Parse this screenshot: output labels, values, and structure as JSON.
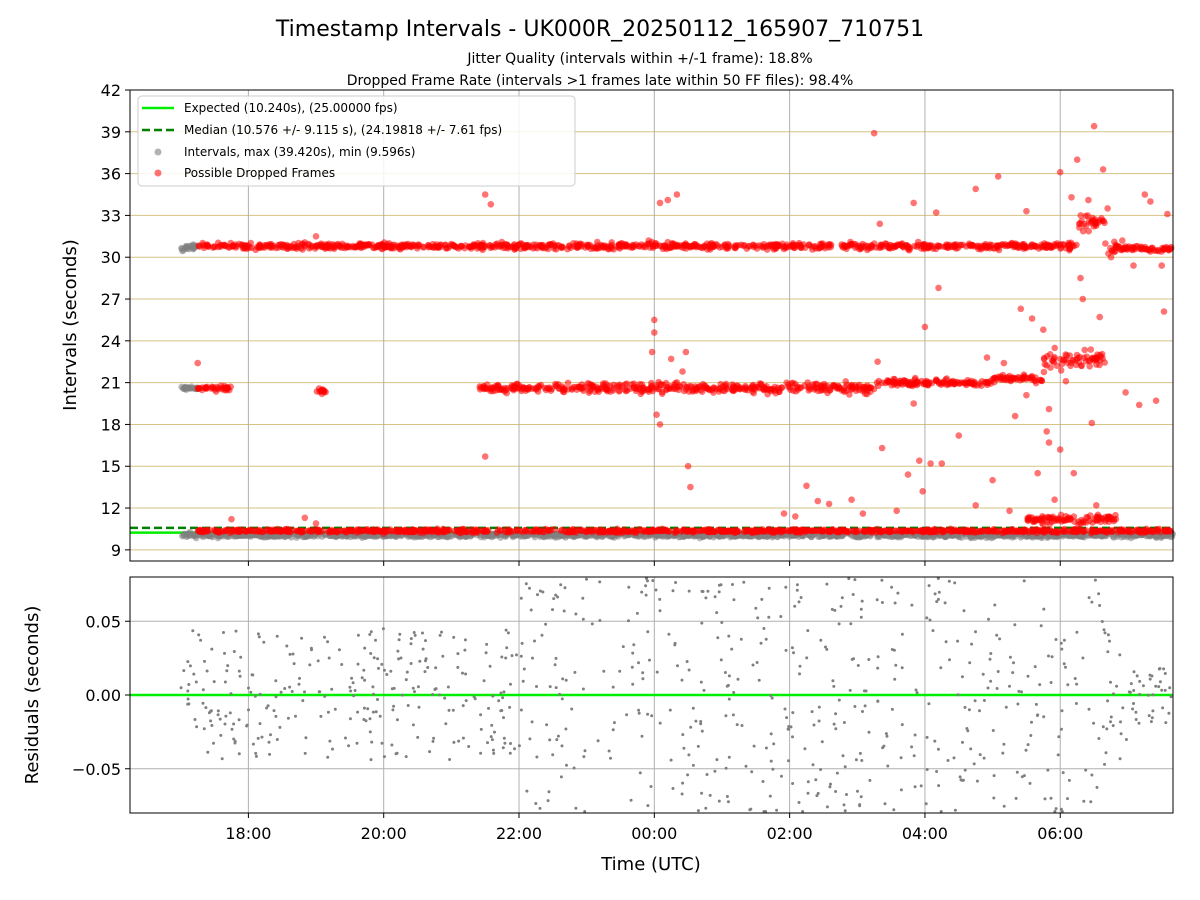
{
  "chart_data": [
    {
      "type": "scatter",
      "title": "Timestamp Intervals - UK000R_20250112_165907_710751",
      "subtitle_1": "Jitter Quality (intervals within +/-1 frame): 18.8%",
      "subtitle_2": "Dropped Frame Rate (intervals >1 frames late within 50 FF files): 98.4%",
      "ylabel": "Intervals (seconds)",
      "ylim": [
        8.2,
        42
      ],
      "yticks": [
        "9",
        "12",
        "15",
        "18",
        "21",
        "24",
        "27",
        "30",
        "33",
        "36",
        "39",
        "42"
      ],
      "xlim": [
        "16:15",
        "07:40"
      ],
      "grid": true,
      "legend_position": "upper-left",
      "expected_line": {
        "name": "Expected (10.240s), (25.00000 fps)",
        "y": 10.24,
        "color": "#00ee00"
      },
      "median_line": {
        "name": "Median (10.576 +/- 9.115 s), (24.19818 +/- 7.61 fps)",
        "y": 10.576,
        "color": "#008000"
      },
      "series": [
        {
          "name": "Intervals, max (39.420s), min (9.596s)",
          "color": "#808080",
          "bands": [
            {
              "from": "17:00",
              "to": "07:40",
              "center": 10.05,
              "spread": 0.25
            },
            {
              "from": "17:00",
              "to": "17:15",
              "center": 30.7,
              "spread": 0.4
            },
            {
              "from": "17:00",
              "to": "17:15",
              "center": 20.6,
              "spread": 0.2
            }
          ]
        },
        {
          "name": "Possible Dropped Frames",
          "color": "#ff0000",
          "bands": [
            {
              "from": "17:15",
              "to": "06:15",
              "center": 30.8,
              "spread": 0.35
            },
            {
              "from": "06:15",
              "to": "06:40",
              "center": 32.5,
              "spread": 1.0
            },
            {
              "from": "06:40",
              "to": "06:55",
              "center": 30.6,
              "spread": 0.6
            },
            {
              "from": "06:55",
              "to": "07:40",
              "center": 30.6,
              "spread": 0.3
            },
            {
              "from": "17:15",
              "to": "17:45",
              "center": 20.6,
              "spread": 0.3
            },
            {
              "from": "19:00",
              "to": "19:10",
              "center": 20.4,
              "spread": 0.3
            },
            {
              "from": "21:25",
              "to": "22:30",
              "center": 20.6,
              "spread": 0.4
            },
            {
              "from": "22:30",
              "to": "03:15",
              "center": 20.6,
              "spread": 0.6
            },
            {
              "from": "03:15",
              "to": "05:00",
              "center": 21.0,
              "spread": 0.4
            },
            {
              "from": "05:00",
              "to": "05:45",
              "center": 21.3,
              "spread": 0.4
            },
            {
              "from": "05:45",
              "to": "06:40",
              "center": 22.6,
              "spread": 1.0
            },
            {
              "from": "17:15",
              "to": "07:40",
              "center": 10.35,
              "spread": 0.2
            },
            {
              "from": "05:30",
              "to": "06:50",
              "center": 11.2,
              "spread": 0.5
            }
          ],
          "outliers": [
            [
              "17:15",
              22.4
            ],
            [
              "17:45",
              11.2
            ],
            [
              "18:50",
              11.3
            ],
            [
              "19:00",
              10.9
            ],
            [
              "19:00",
              31.5
            ],
            [
              "21:30",
              34.5
            ],
            [
              "21:35",
              33.8
            ],
            [
              "21:30",
              15.7
            ],
            [
              "23:55",
              31.2
            ],
            [
              "23:58",
              23.2
            ],
            [
              "00:00",
              24.6
            ],
            [
              "00:00",
              25.5
            ],
            [
              "00:02",
              18.7
            ],
            [
              "00:05",
              18.0
            ],
            [
              "00:05",
              33.9
            ],
            [
              "00:12",
              34.1
            ],
            [
              "00:15",
              22.7
            ],
            [
              "00:20",
              34.5
            ],
            [
              "00:25",
              21.8
            ],
            [
              "00:28",
              23.2
            ],
            [
              "00:30",
              15.0
            ],
            [
              "00:32",
              13.5
            ],
            [
              "01:55",
              11.6
            ],
            [
              "02:05",
              11.4
            ],
            [
              "02:15",
              13.6
            ],
            [
              "02:25",
              12.5
            ],
            [
              "02:35",
              12.3
            ],
            [
              "02:55",
              12.6
            ],
            [
              "03:05",
              11.6
            ],
            [
              "03:15",
              38.9
            ],
            [
              "03:18",
              22.5
            ],
            [
              "03:20",
              32.4
            ],
            [
              "03:22",
              16.3
            ],
            [
              "03:35",
              11.8
            ],
            [
              "03:45",
              14.4
            ],
            [
              "03:50",
              19.5
            ],
            [
              "03:50",
              33.9
            ],
            [
              "03:55",
              15.4
            ],
            [
              "03:58",
              13.2
            ],
            [
              "04:00",
              25.0
            ],
            [
              "04:05",
              15.2
            ],
            [
              "04:10",
              33.2
            ],
            [
              "04:12",
              27.8
            ],
            [
              "04:15",
              15.2
            ],
            [
              "04:30",
              17.2
            ],
            [
              "04:45",
              34.9
            ],
            [
              "04:45",
              12.2
            ],
            [
              "04:55",
              22.8
            ],
            [
              "05:00",
              14.0
            ],
            [
              "05:05",
              35.8
            ],
            [
              "05:10",
              22.4
            ],
            [
              "05:15",
              11.8
            ],
            [
              "05:20",
              18.6
            ],
            [
              "05:25",
              26.3
            ],
            [
              "05:30",
              33.3
            ],
            [
              "05:30",
              20.1
            ],
            [
              "05:35",
              25.6
            ],
            [
              "05:40",
              14.5
            ],
            [
              "05:45",
              24.8
            ],
            [
              "05:48",
              17.5
            ],
            [
              "05:50",
              16.7
            ],
            [
              "05:50",
              19.1
            ],
            [
              "05:55",
              12.6
            ],
            [
              "06:00",
              36.1
            ],
            [
              "06:00",
              16.2
            ],
            [
              "06:05",
              21.1
            ],
            [
              "06:10",
              34.3
            ],
            [
              "06:12",
              14.5
            ],
            [
              "06:15",
              37.0
            ],
            [
              "06:18",
              28.5
            ],
            [
              "06:20",
              27.0
            ],
            [
              "06:25",
              34.1
            ],
            [
              "06:28",
              18.1
            ],
            [
              "06:30",
              39.4
            ],
            [
              "06:32",
              12.2
            ],
            [
              "06:35",
              25.7
            ],
            [
              "06:38",
              36.3
            ],
            [
              "06:42",
              33.5
            ],
            [
              "06:45",
              30.0
            ],
            [
              "06:55",
              31.2
            ],
            [
              "06:58",
              20.3
            ],
            [
              "07:05",
              29.4
            ],
            [
              "07:10",
              19.4
            ],
            [
              "07:15",
              34.5
            ],
            [
              "07:20",
              34.0
            ],
            [
              "07:25",
              19.7
            ],
            [
              "07:30",
              29.4
            ],
            [
              "07:32",
              26.1
            ],
            [
              "07:35",
              33.1
            ]
          ]
        }
      ]
    },
    {
      "type": "scatter",
      "ylabel": "Residuals (seconds)",
      "xlabel": "Time (UTC)",
      "ylim": [
        -0.08,
        0.08
      ],
      "yticks": [
        "0.05",
        "0.00",
        "−0.05"
      ],
      "xticks": [
        "18:00",
        "20:00",
        "22:00",
        "00:00",
        "02:00",
        "04:00",
        "06:00"
      ],
      "xlim": [
        "16:15",
        "07:40"
      ],
      "grid": true,
      "zero_line_color": "#00ee00",
      "series": [
        {
          "name": "",
          "color": "#808080",
          "groups": [
            {
              "from": "17:00",
              "to": "17:10",
              "spread": 0.03
            },
            {
              "from": "17:10",
              "to": "22:00",
              "spread": 0.045
            },
            {
              "from": "22:00",
              "to": "06:35",
              "spread": 0.08
            },
            {
              "from": "06:35",
              "to": "07:00",
              "spread": 0.05
            },
            {
              "from": "07:00",
              "to": "07:40",
              "spread": 0.02
            }
          ]
        }
      ]
    }
  ],
  "legend": {
    "expected": "Expected (10.240s), (25.00000 fps)",
    "median": "Median (10.576 +/- 9.115 s), (24.19818 +/- 7.61 fps)",
    "intervals": "Intervals, max (39.420s), min (9.596s)",
    "dropped": "Possible Dropped Frames"
  }
}
